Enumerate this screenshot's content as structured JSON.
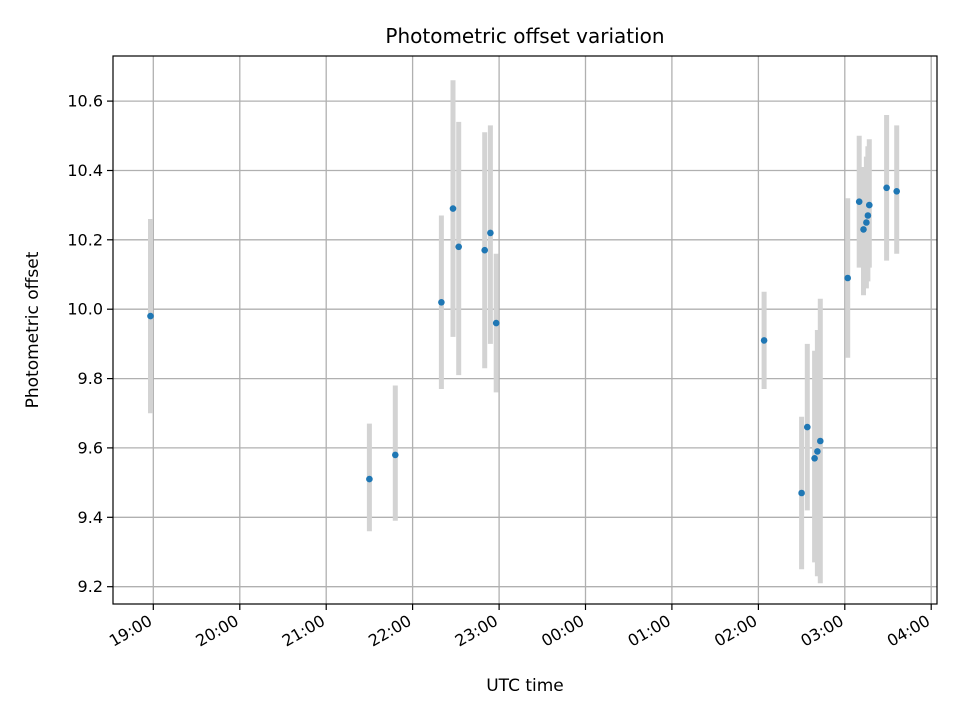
{
  "chart_data": {
    "type": "scatter",
    "title": "Photometric offset variation",
    "xlabel": "UTC time",
    "ylabel": "Photometric offset",
    "xlim": [
      "18:32",
      "04:04"
    ],
    "ylim": [
      9.15,
      10.73
    ],
    "x_ticks": [
      "19:00",
      "20:00",
      "21:00",
      "22:00",
      "23:00",
      "00:00",
      "01:00",
      "02:00",
      "03:00",
      "04:00"
    ],
    "y_ticks": [
      9.2,
      9.4,
      9.6,
      9.8,
      10.0,
      10.2,
      10.4,
      10.6
    ],
    "grid": true,
    "marker_color": "#1f77b4",
    "errorbar_color": "#d3d3d3",
    "points": [
      {
        "x": "18:58",
        "y": 9.98,
        "lo": 9.7,
        "hi": 10.26
      },
      {
        "x": "21:30",
        "y": 9.51,
        "lo": 9.36,
        "hi": 9.67
      },
      {
        "x": "21:48",
        "y": 9.58,
        "lo": 9.39,
        "hi": 9.78
      },
      {
        "x": "22:20",
        "y": 10.02,
        "lo": 9.77,
        "hi": 10.27
      },
      {
        "x": "22:28",
        "y": 10.29,
        "lo": 9.92,
        "hi": 10.66
      },
      {
        "x": "22:32",
        "y": 10.18,
        "lo": 9.81,
        "hi": 10.54
      },
      {
        "x": "22:50",
        "y": 10.17,
        "lo": 9.83,
        "hi": 10.51
      },
      {
        "x": "22:54",
        "y": 10.22,
        "lo": 9.9,
        "hi": 10.53
      },
      {
        "x": "22:58",
        "y": 9.96,
        "lo": 9.76,
        "hi": 10.16
      },
      {
        "x": "02:04",
        "y": 9.91,
        "lo": 9.77,
        "hi": 10.05
      },
      {
        "x": "02:30",
        "y": 9.47,
        "lo": 9.25,
        "hi": 9.69
      },
      {
        "x": "02:34",
        "y": 9.66,
        "lo": 9.42,
        "hi": 9.9
      },
      {
        "x": "02:39",
        "y": 9.57,
        "lo": 9.27,
        "hi": 9.88
      },
      {
        "x": "02:41",
        "y": 9.59,
        "lo": 9.23,
        "hi": 9.94
      },
      {
        "x": "02:43",
        "y": 9.62,
        "lo": 9.21,
        "hi": 10.03
      },
      {
        "x": "03:02",
        "y": 10.09,
        "lo": 9.86,
        "hi": 10.32
      },
      {
        "x": "03:10",
        "y": 10.31,
        "lo": 10.12,
        "hi": 10.5
      },
      {
        "x": "03:13",
        "y": 10.23,
        "lo": 10.04,
        "hi": 10.41
      },
      {
        "x": "03:15",
        "y": 10.25,
        "lo": 10.06,
        "hi": 10.44
      },
      {
        "x": "03:16",
        "y": 10.27,
        "lo": 10.08,
        "hi": 10.47
      },
      {
        "x": "03:17",
        "y": 10.3,
        "lo": 10.12,
        "hi": 10.49
      },
      {
        "x": "03:29",
        "y": 10.35,
        "lo": 10.14,
        "hi": 10.56
      },
      {
        "x": "03:36",
        "y": 10.34,
        "lo": 10.16,
        "hi": 10.53
      }
    ]
  }
}
